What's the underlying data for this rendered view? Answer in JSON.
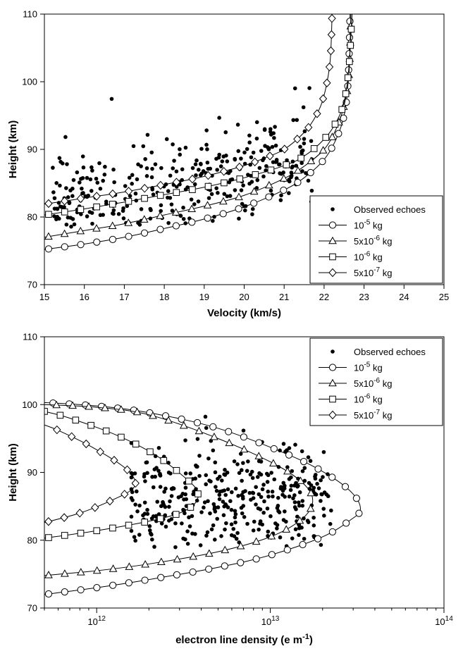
{
  "chart_data": [
    {
      "type": "scatter",
      "xlabel": "Velocity (km/s)",
      "ylabel": "Height (km)",
      "xlim": [
        15,
        25
      ],
      "ylim": [
        70,
        110
      ],
      "x_ticks": [
        15,
        16,
        17,
        18,
        19,
        20,
        21,
        22,
        23,
        24,
        25
      ],
      "y_ticks": [
        70,
        80,
        90,
        100,
        110
      ],
      "legend_position": "bottom-right",
      "legend": [
        {
          "marker": "dot",
          "label": "Observed echoes",
          "sup": ""
        },
        {
          "marker": "circle",
          "label": "10",
          "sup": "-5",
          "suffix": " kg"
        },
        {
          "marker": "triangle",
          "label": "5x10",
          "sup": "-6",
          "suffix": " kg"
        },
        {
          "marker": "square",
          "label": "10",
          "sup": "-6",
          "suffix": " kg"
        },
        {
          "marker": "diamond",
          "label": "5x10",
          "sup": "-7",
          "suffix": " kg"
        }
      ],
      "series": [
        {
          "name": "10-5 kg",
          "marker": "circle",
          "line": [
            [
              15,
              75.2
            ],
            [
              16,
              76.0
            ],
            [
              17,
              77.0
            ],
            [
              18,
              78.3
            ],
            [
              19,
              79.7
            ],
            [
              20,
              81.5
            ],
            [
              21,
              84.0
            ],
            [
              21.5,
              85.8
            ],
            [
              22,
              88.5
            ],
            [
              22.3,
              91.5
            ],
            [
              22.5,
              95
            ],
            [
              22.6,
              100
            ],
            [
              22.65,
              110
            ]
          ]
        },
        {
          "name": "5x10-6 kg",
          "marker": "triangle",
          "line": [
            [
              15,
              77.0
            ],
            [
              16,
              78.0
            ],
            [
              17,
              79.0
            ],
            [
              18,
              80.3
            ],
            [
              19,
              81.6
            ],
            [
              20,
              83.2
            ],
            [
              21,
              85.7
            ],
            [
              21.5,
              87.5
            ],
            [
              22,
              90.0
            ],
            [
              22.3,
              93.0
            ],
            [
              22.5,
              96.5
            ],
            [
              22.62,
              101
            ],
            [
              22.67,
              110
            ]
          ]
        },
        {
          "name": "10-6 kg",
          "marker": "square",
          "line": [
            [
              15,
              80.3
            ],
            [
              16,
              81.2
            ],
            [
              17,
              82.2
            ],
            [
              18,
              83.3
            ],
            [
              19,
              84.4
            ],
            [
              20,
              85.8
            ],
            [
              21,
              87.6
            ],
            [
              21.5,
              89.0
            ],
            [
              22,
              91.5
            ],
            [
              22.3,
              94.0
            ],
            [
              22.5,
              97.0
            ],
            [
              22.62,
              102
            ],
            [
              22.7,
              110
            ]
          ]
        },
        {
          "name": "5x10-7 kg",
          "marker": "diamond",
          "line": [
            [
              15,
              81.9
            ],
            [
              16,
              82.8
            ],
            [
              17,
              83.7
            ],
            [
              18,
              84.8
            ],
            [
              19,
              86.0
            ],
            [
              20,
              87.6
            ],
            [
              20.5,
              88.7
            ],
            [
              21,
              90.0
            ],
            [
              21.5,
              92.5
            ],
            [
              21.8,
              95.0
            ],
            [
              22,
              98.0
            ],
            [
              22.15,
              103
            ],
            [
              22.2,
              110
            ]
          ]
        }
      ]
    },
    {
      "type": "scatter",
      "xlabel": "electron line density (e m",
      "xlabel_sup": "-1",
      "xlabel_suffix": ")",
      "ylabel": "Height (km)",
      "xscale": "log",
      "xlim": [
        500000000000.0,
        100000000000000.0
      ],
      "ylim": [
        70,
        110
      ],
      "x_ticks": [
        {
          "value": 1000000000000.0,
          "base": "10",
          "exp": "12"
        },
        {
          "value": 10000000000000.0,
          "base": "10",
          "exp": "13"
        },
        {
          "value": 100000000000000.0,
          "base": "10",
          "exp": "14"
        }
      ],
      "y_ticks": [
        70,
        80,
        90,
        100,
        110
      ],
      "legend_position": "top-right",
      "legend": [
        {
          "marker": "dot",
          "label": "Observed echoes",
          "sup": ""
        },
        {
          "marker": "circle",
          "label": "10",
          "sup": "-5",
          "suffix": " kg"
        },
        {
          "marker": "triangle",
          "label": "5x10",
          "sup": "-6",
          "suffix": " kg"
        },
        {
          "marker": "square",
          "label": "10",
          "sup": "-6",
          "suffix": " kg"
        },
        {
          "marker": "diamond",
          "label": "5x10",
          "sup": "-7",
          "suffix": " kg"
        }
      ],
      "series": [
        {
          "name": "10-5 kg",
          "marker": "circle",
          "line": [
            [
              500000000000.0,
              72.0
            ],
            [
              1000000000000.0,
              73.0
            ],
            [
              2000000000000.0,
              74.2
            ],
            [
              5000000000000.0,
              76.0
            ],
            [
              10000000000000.0,
              77.8
            ],
            [
              20000000000000.0,
              80.5
            ],
            [
              29000000000000.0,
              83.0
            ],
            [
              33000000000000.0,
              84.5
            ],
            [
              30000000000000.0,
              86.8
            ],
            [
              22000000000000.0,
              89.5
            ],
            [
              13000000000000.0,
              92.5
            ],
            [
              5000000000000.0,
              96.5
            ],
            [
              2000000000000.0,
              98.8
            ],
            [
              1000000000000.0,
              99.8
            ],
            [
              500000000000.0,
              100.3
            ]
          ]
        },
        {
          "name": "5x10-6 kg",
          "marker": "triangle",
          "line": [
            [
              500000000000.0,
              74.8
            ],
            [
              1000000000000.0,
              75.5
            ],
            [
              2000000000000.0,
              76.5
            ],
            [
              5000000000000.0,
              78.3
            ],
            [
              10000000000000.0,
              80.5
            ],
            [
              15000000000000.0,
              83.0
            ],
            [
              17500000000000.0,
              85.5
            ],
            [
              16000000000000.0,
              88.0
            ],
            [
              11000000000000.0,
              91.0
            ],
            [
              5000000000000.0,
              95.0
            ],
            [
              2000000000000.0,
              98.5
            ],
            [
              1000000000000.0,
              99.6
            ],
            [
              500000000000.0,
              100.0
            ]
          ]
        },
        {
          "name": "10-6 kg",
          "marker": "square",
          "line": [
            [
              500000000000.0,
              80.3
            ],
            [
              1000000000000.0,
              81.4
            ],
            [
              2000000000000.0,
              82.8
            ],
            [
              3000000000000.0,
              84.0
            ],
            [
              3700000000000.0,
              85.5
            ],
            [
              3800000000000.0,
              87.2
            ],
            [
              3300000000000.0,
              89.0
            ],
            [
              2200000000000.0,
              92.5
            ],
            [
              1300000000000.0,
              95.5
            ],
            [
              700000000000.0,
              98.0
            ],
            [
              500000000000.0,
              99.0
            ]
          ]
        },
        {
          "name": "5x10-7 kg",
          "marker": "diamond",
          "line": [
            [
              500000000000.0,
              82.6
            ],
            [
              800000000000.0,
              84.0
            ],
            [
              1200000000000.0,
              85.8
            ],
            [
              1600000000000.0,
              87.5
            ],
            [
              1650000000000.0,
              89.0
            ],
            [
              1400000000000.0,
              91.0
            ],
            [
              900000000000.0,
              94.0
            ],
            [
              600000000000.0,
              96.2
            ],
            [
              500000000000.0,
              97.0
            ]
          ]
        }
      ]
    }
  ],
  "echoes_top_seed": 7,
  "echoes_bottom_seed": 11
}
